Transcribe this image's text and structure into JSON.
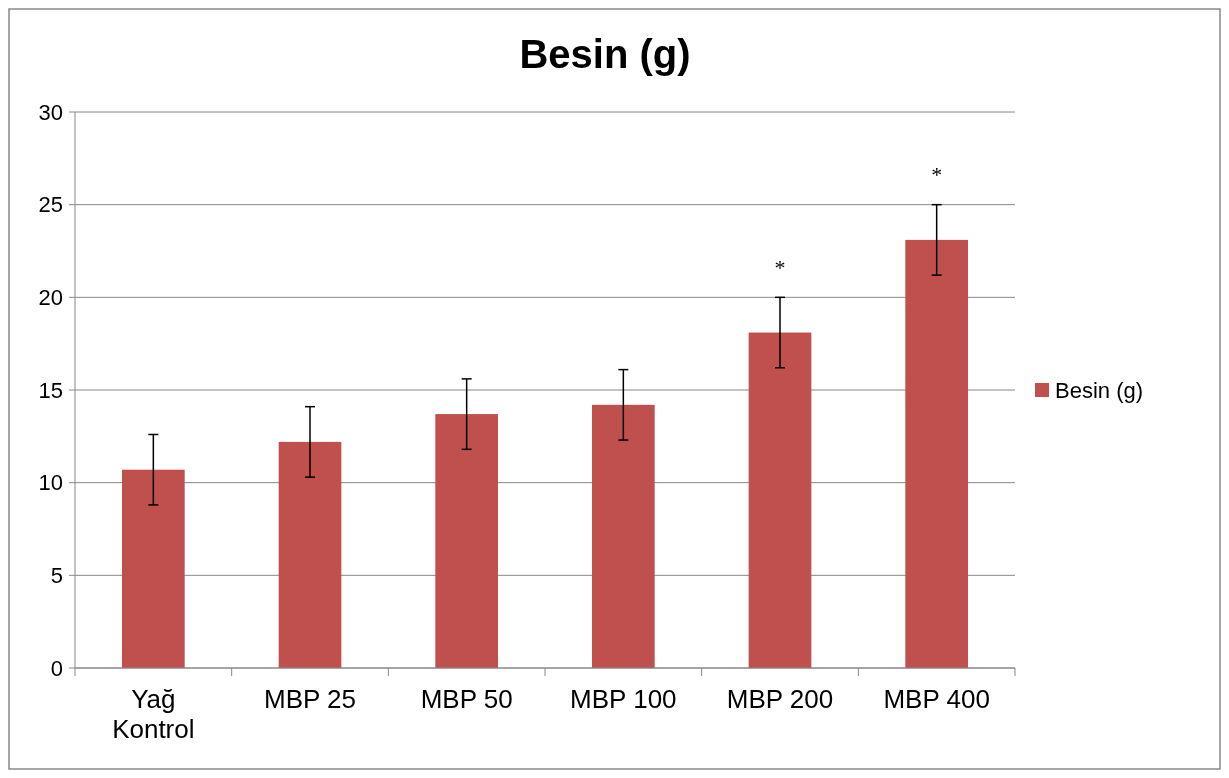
{
  "chart_data": {
    "type": "bar",
    "title": "Besin (g)",
    "categories": [
      "Yağ Kontrol",
      "MBP 25",
      "MBP 50",
      "MBP 100",
      "MBP 200",
      "MBP 400"
    ],
    "series": [
      {
        "name": "Besin (g)",
        "color": "#c0504d",
        "values": [
          10.7,
          12.2,
          13.7,
          14.2,
          18.1,
          23.1
        ],
        "errors": [
          1.9,
          1.9,
          1.9,
          1.9,
          1.9,
          1.9
        ]
      }
    ],
    "ylim": [
      0,
      30
    ],
    "yticks": [
      0,
      5,
      10,
      15,
      20,
      25,
      30
    ],
    "grid": "y",
    "legend": "right",
    "annotations": [
      {
        "text": "*",
        "x": "MBP 200",
        "y": 20.0
      },
      {
        "text": "*",
        "x": "MBP 400",
        "y": 25.0
      }
    ]
  }
}
